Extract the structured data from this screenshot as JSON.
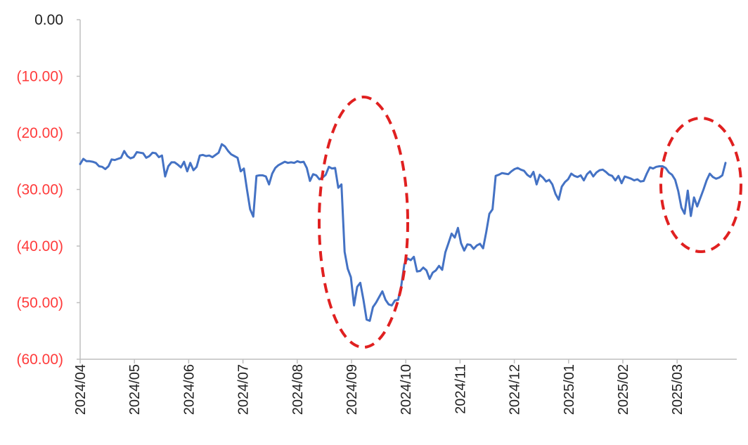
{
  "chart_data": {
    "type": "line",
    "title": "",
    "xlabel": "",
    "ylabel": "",
    "ylim": [
      -60,
      0
    ],
    "yticks": [
      {
        "value": 0,
        "label": "0.00"
      },
      {
        "value": -10,
        "label": "(10.00)"
      },
      {
        "value": -20,
        "label": "(20.00)"
      },
      {
        "value": -30,
        "label": "(30.00)"
      },
      {
        "value": -40,
        "label": "(40.00)"
      },
      {
        "value": -50,
        "label": "(50.00)"
      },
      {
        "value": -60,
        "label": "(60.00)"
      }
    ],
    "xticks": [
      "2024/04",
      "2024/05",
      "2024/06",
      "2024/07",
      "2024/08",
      "2024/09",
      "2024/10",
      "2024/11",
      "2024/12",
      "2025/01",
      "2025/02",
      "2025/03"
    ],
    "grid": false,
    "colors": {
      "line": "#4472C4",
      "positive_label": "#222222",
      "negative_label": "#FF3B3B",
      "annotation": "#E02020",
      "axis": "#BFBFBF"
    },
    "series": [
      {
        "values": [
          -25.5,
          -24.6,
          -25.0,
          -25.0,
          -25.1,
          -25.3,
          -25.9,
          -26.0,
          -26.4,
          -25.9,
          -24.7,
          -24.8,
          -24.6,
          -24.4,
          -23.2,
          -24.1,
          -24.5,
          -24.3,
          -23.4,
          -23.5,
          -23.6,
          -24.4,
          -24.1,
          -23.5,
          -23.6,
          -24.3,
          -24.0,
          -27.7,
          -25.9,
          -25.2,
          -25.2,
          -25.6,
          -26.1,
          -25.1,
          -26.8,
          -25.3,
          -26.6,
          -26.0,
          -24.0,
          -23.9,
          -24.1,
          -24.0,
          -24.3,
          -23.9,
          -23.5,
          -22.0,
          -22.4,
          -23.2,
          -23.8,
          -24.1,
          -24.4,
          -26.8,
          -26.3,
          -30.0,
          -33.5,
          -34.8,
          -27.6,
          -27.5,
          -27.5,
          -27.7,
          -29.1,
          -27.2,
          -26.2,
          -25.7,
          -25.4,
          -25.1,
          -25.3,
          -25.2,
          -25.3,
          -25.0,
          -25.2,
          -25.1,
          -26.2,
          -28.5,
          -27.3,
          -27.5,
          -28.2,
          -27.9,
          -27.4,
          -26.0,
          -26.3,
          -26.2,
          -29.7,
          -29.1,
          -41.0,
          -44.0,
          -45.5,
          -50.5,
          -47.2,
          -46.5,
          -49.5,
          -53.0,
          -53.2,
          -50.8,
          -50.0,
          -49.0,
          -48.0,
          -49.5,
          -50.3,
          -50.5,
          -49.6,
          -49.5,
          -47.0,
          -43.2,
          -42.2,
          -42.5,
          -41.9,
          -44.5,
          -44.4,
          -43.8,
          -44.3,
          -45.8,
          -44.7,
          -44.3,
          -43.5,
          -44.2,
          -41.1,
          -39.5,
          -37.8,
          -38.5,
          -36.8,
          -39.5,
          -40.8,
          -39.7,
          -39.8,
          -40.5,
          -39.9,
          -39.6,
          -40.4,
          -37.5,
          -34.3,
          -33.5,
          -27.6,
          -27.4,
          -27.1,
          -27.2,
          -27.3,
          -26.8,
          -26.4,
          -26.2,
          -26.5,
          -26.7,
          -27.4,
          -27.8,
          -26.9,
          -29.1,
          -27.4,
          -27.9,
          -28.6,
          -28.3,
          -29.1,
          -30.8,
          -31.8,
          -29.5,
          -28.7,
          -28.2,
          -27.2,
          -27.6,
          -27.8,
          -27.5,
          -28.4,
          -27.3,
          -26.8,
          -27.7,
          -27.0,
          -26.6,
          -26.5,
          -26.9,
          -27.4,
          -27.6,
          -28.4,
          -27.6,
          -28.9,
          -27.7,
          -27.9,
          -28.1,
          -28.4,
          -28.2,
          -28.6,
          -28.5,
          -27.2,
          -26.1,
          -26.3,
          -26.0,
          -25.9,
          -25.9,
          -26.2,
          -27.0,
          -27.4,
          -28.3,
          -30.3,
          -33.2,
          -34.3,
          -30.2,
          -34.7,
          -31.4,
          -33.0,
          -31.5,
          -30.0,
          -28.4,
          -27.2,
          -27.8,
          -28.1,
          -27.9,
          -27.5,
          -25.3
        ]
      }
    ],
    "annotations": [
      {
        "type": "ellipse",
        "label": ""
      },
      {
        "type": "ellipse",
        "label": ""
      }
    ]
  }
}
